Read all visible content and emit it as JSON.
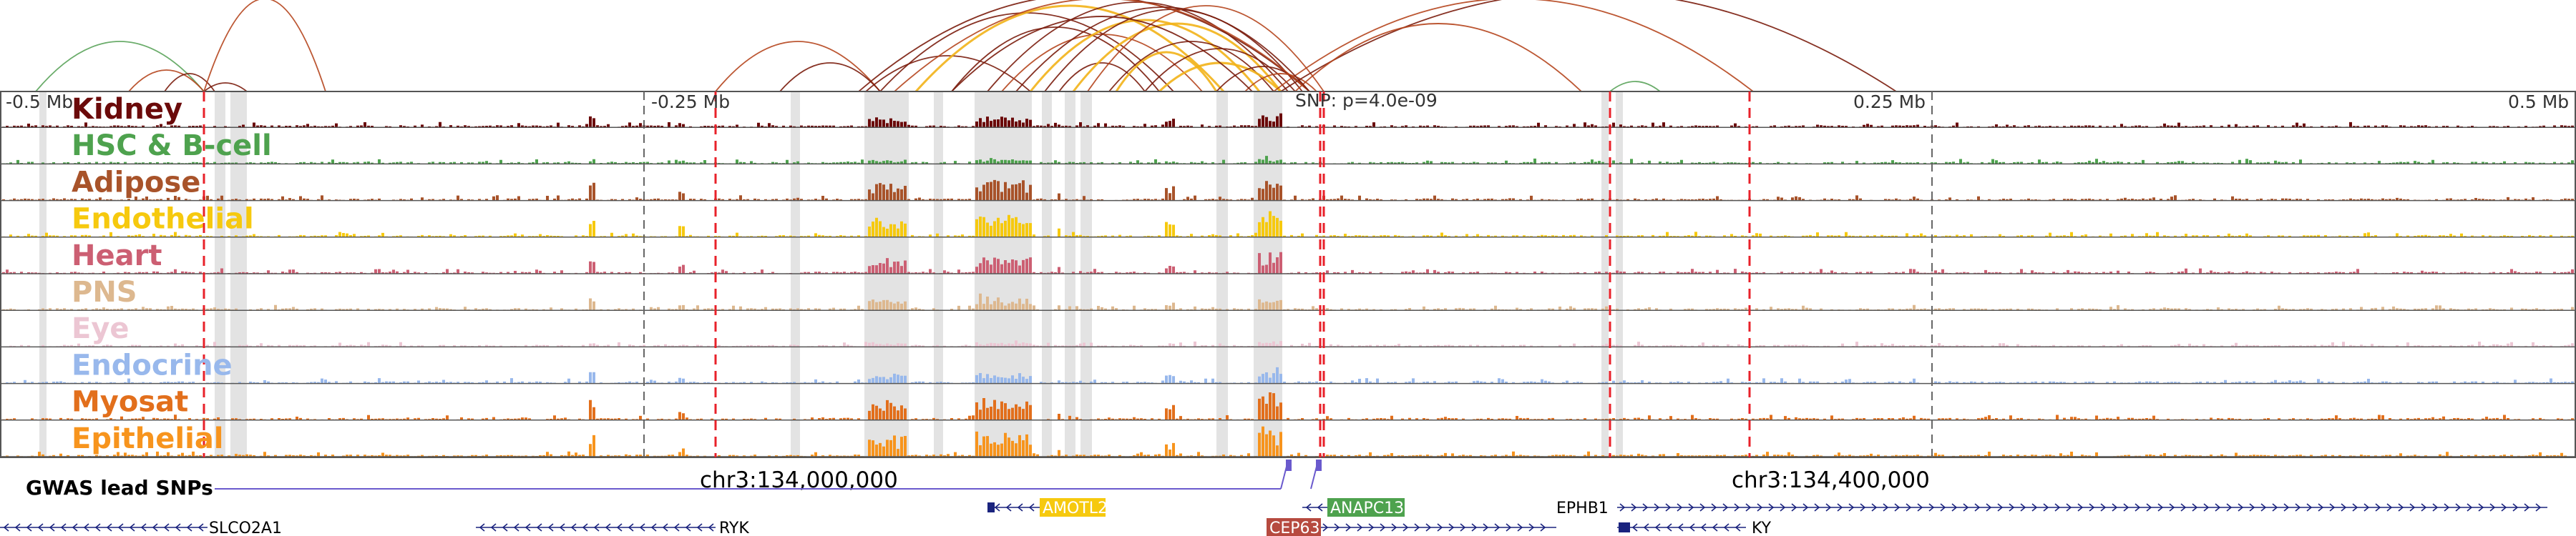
{
  "axis": {
    "ticks": [
      "-0.5 Mb",
      "-0.25 Mb",
      "0.25 Mb",
      "0.5 Mb"
    ],
    "snp_label": "SNP: p=4.0e-09",
    "chrom_labels": [
      "chr3:134,000,000",
      "chr3:134,400,000"
    ]
  },
  "colors": {
    "arc_dark": "#7a1c0c",
    "arc_mid": "#b5451d",
    "arc_gold": "#f2b318",
    "arc_green": "#5aa35a",
    "highlight": "#d9d9d9",
    "snp_line": "#e8212a",
    "gwas": "#6a5acd",
    "gene_strand": "#1a237e"
  },
  "tracks": [
    {
      "name": "Kidney",
      "color": "#6b0a0a"
    },
    {
      "name": "HSC & B-cell",
      "color": "#4ea24e"
    },
    {
      "name": "Adipose",
      "color": "#a8532a"
    },
    {
      "name": "Endothelial",
      "color": "#f6c90e"
    },
    {
      "name": "Heart",
      "color": "#cc5f73"
    },
    {
      "name": "PNS",
      "color": "#ddb88f"
    },
    {
      "name": "Eye",
      "color": "#ecc6d3"
    },
    {
      "name": "Endocrine",
      "color": "#98b8ec"
    },
    {
      "name": "Myosat",
      "color": "#e26f1c"
    },
    {
      "name": "Epithelial",
      "color": "#f7941d"
    }
  ],
  "gwas": {
    "label": "GWAS lead SNPs"
  },
  "genes": [
    {
      "name": "AMOTL2",
      "box_color": "#f6c90e",
      "text_color": "#ffffff"
    },
    {
      "name": "ANAPC13",
      "box_color": "#4ea24e",
      "text_color": "#ffffff"
    },
    {
      "name": "EPHB1",
      "box_color": "",
      "text_color": "#000000"
    },
    {
      "name": "SLCO2A1",
      "box_color": "",
      "text_color": "#000000"
    },
    {
      "name": "RYK",
      "box_color": "",
      "text_color": "#000000"
    },
    {
      "name": "CEP63",
      "box_color": "#b64a3f",
      "text_color": "#ffffff"
    },
    {
      "name": "KY",
      "box_color": "",
      "text_color": "#000000"
    }
  ]
}
